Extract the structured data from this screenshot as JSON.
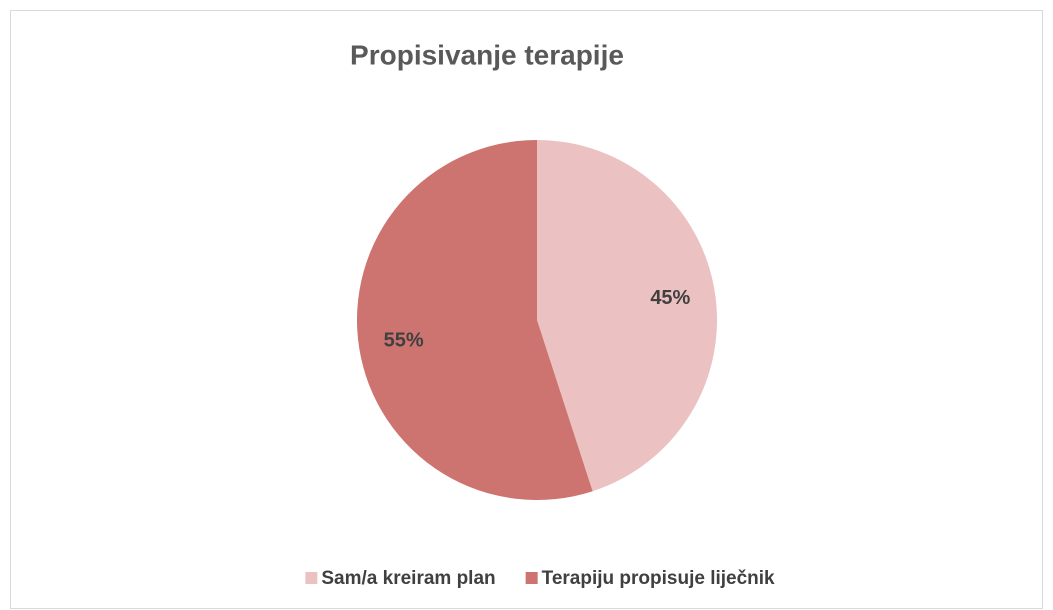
{
  "chart_data": {
    "type": "pie",
    "title": "Propisivanje terapije",
    "categories": [
      "Sam/a kreiram plan",
      "Terapiju propisuje liječnik"
    ],
    "values": [
      45,
      55
    ],
    "value_labels": [
      "45%",
      "55%"
    ],
    "colors": [
      "#ecc1c1",
      "#cd7370"
    ],
    "legend": "bottom"
  }
}
